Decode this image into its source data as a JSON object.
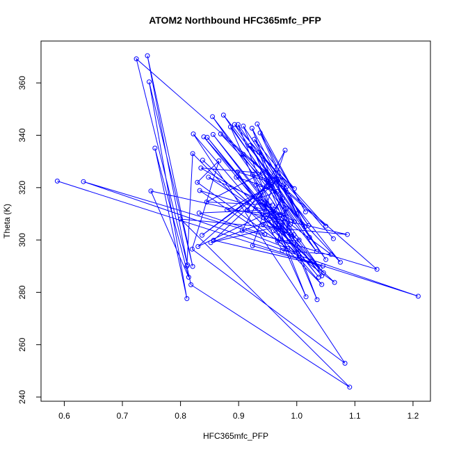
{
  "chart_data": {
    "type": "scatter",
    "title": "ATOM2 Northbound HFC365mfc_PFP",
    "xlabel": "HFC365mfc_PFP",
    "ylabel": "Theta (K)",
    "xlim": [
      0.56,
      1.23
    ],
    "ylim": [
      238.4,
      376.0
    ],
    "xticks": [
      0.6,
      0.7,
      0.8,
      0.9,
      1.0,
      1.1,
      1.2
    ],
    "yticks": [
      240,
      260,
      280,
      300,
      320,
      340,
      360
    ],
    "grid": false,
    "legend": "none",
    "color": "#0000ff",
    "series": [
      {
        "values": [
          [
            0.588,
            322.5
          ],
          [
            1.209,
            278.5
          ],
          [
            0.633,
            322.3
          ],
          [
            1.138,
            288.8
          ],
          [
            0.724,
            369.2
          ],
          [
            0.812,
            290.5
          ],
          [
            0.743,
            370.4
          ],
          [
            0.821,
            289.9
          ],
          [
            0.746,
            360.4
          ],
          [
            0.811,
            277.6
          ],
          [
            0.756,
            335.1
          ],
          [
            0.814,
            285.8
          ],
          [
            0.749,
            318.7
          ],
          [
            1.087,
            302.1
          ],
          [
            0.8,
            308.0
          ],
          [
            1.091,
            243.8
          ],
          [
            0.818,
            282.9
          ],
          [
            0.811,
            290.0
          ],
          [
            0.821,
            333.0
          ],
          [
            1.043,
            283.0
          ],
          [
            0.822,
            340.5
          ],
          [
            1.083,
            252.9
          ],
          [
            0.82,
            296.5
          ],
          [
            0.866,
            330.2
          ],
          [
            0.829,
            322.0
          ],
          [
            1.065,
            283.8
          ],
          [
            0.838,
            330.5
          ],
          [
            1.046,
            287.5
          ],
          [
            0.84,
            339.4
          ],
          [
            1.038,
            285.8
          ],
          [
            0.846,
            339.2
          ],
          [
            1.043,
            286.3
          ],
          [
            0.856,
            340.3
          ],
          [
            1.04,
            289.2
          ],
          [
            0.855,
            347.1
          ],
          [
            1.034,
            295.6
          ],
          [
            0.874,
            347.7
          ],
          [
            1.075,
            291.5
          ],
          [
            0.869,
            340.5
          ],
          [
            1.05,
            305.3
          ],
          [
            0.893,
            344.1
          ],
          [
            1.05,
            292.5
          ],
          [
            0.886,
            343.2
          ],
          [
            1.016,
            278.3
          ],
          [
            0.899,
            344.1
          ],
          [
            1.02,
            305.5
          ],
          [
            0.908,
            343.5
          ],
          [
            1.035,
            277.2
          ],
          [
            0.923,
            342.7
          ],
          [
            1.022,
            301.0
          ],
          [
            0.932,
            344.3
          ],
          [
            1.015,
            310.7
          ],
          [
            0.937,
            340.9
          ],
          [
            1.0,
            310.0
          ],
          [
            0.927,
            338.5
          ],
          [
            0.996,
            319.6
          ],
          [
            0.919,
            336.0
          ],
          [
            1.014,
            305.1
          ],
          [
            0.908,
            332.7
          ],
          [
            0.982,
            320.3
          ],
          [
            0.898,
            326.0
          ],
          [
            0.984,
            296.8
          ],
          [
            0.906,
            303.5
          ],
          [
            0.98,
            334.3
          ],
          [
            0.924,
            297.8
          ],
          [
            1.045,
            290.1
          ],
          [
            0.857,
            299.9
          ],
          [
            0.968,
            323.2
          ],
          [
            0.837,
            301.8
          ],
          [
            0.948,
            320.5
          ],
          [
            0.83,
            297.5
          ],
          [
            0.962,
            311.6
          ],
          [
            0.832,
            310.3
          ],
          [
            0.945,
            302.1
          ],
          [
            0.833,
            318.9
          ],
          [
            0.972,
            309.7
          ],
          [
            0.835,
            327.5
          ],
          [
            0.941,
            325.6
          ],
          [
            0.845,
            314.5
          ],
          [
            0.958,
            313.3
          ],
          [
            0.848,
            324.0
          ],
          [
            0.974,
            305.5
          ],
          [
            0.852,
            299.0
          ],
          [
            0.979,
            309.5
          ],
          [
            0.88,
            311.5
          ],
          [
            0.95,
            320.1
          ],
          [
            0.896,
            324.0
          ],
          [
            0.991,
            301.3
          ],
          [
            0.915,
            311.4
          ],
          [
            0.952,
            323.0
          ],
          [
            0.924,
            325.0
          ],
          [
            0.987,
            299.4
          ],
          [
            0.93,
            321.0
          ],
          [
            0.966,
            318.5
          ],
          [
            0.937,
            316.0
          ],
          [
            0.995,
            302.0
          ],
          [
            0.942,
            306.0
          ],
          [
            0.975,
            315.8
          ],
          [
            0.955,
            309.0
          ],
          [
            1.004,
            294.0
          ],
          [
            0.96,
            303.5
          ],
          [
            0.982,
            312.0
          ],
          [
            0.967,
            299.6
          ],
          [
            1.004,
            300.0
          ],
          [
            0.97,
            304.0
          ],
          [
            0.943,
            308.5
          ],
          [
            0.975,
            296.0
          ],
          [
            1.059,
            294.5
          ],
          [
            0.938,
            314.5
          ],
          [
            0.996,
            307.0
          ],
          [
            0.95,
            322.5
          ],
          [
            0.989,
            306.0
          ],
          [
            0.965,
            323.5
          ],
          [
            0.987,
            303.5
          ],
          [
            0.935,
            333.5
          ],
          [
            1.063,
            300.5
          ]
        ]
      }
    ]
  }
}
